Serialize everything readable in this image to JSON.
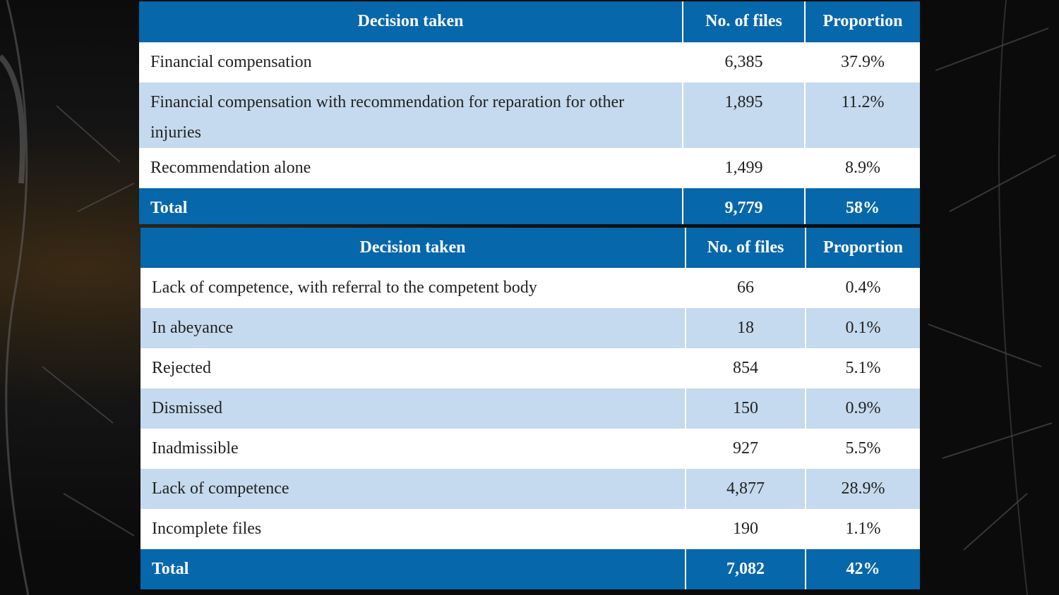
{
  "tables": [
    {
      "header": [
        "Decision taken",
        "No. of files",
        "Proportion"
      ],
      "rows": [
        [
          "Financial compensation",
          "6,385",
          "37.9%"
        ],
        [
          "Financial compensation with recommendation for reparation for other injuries",
          "1,895",
          "11.2%"
        ],
        [
          "Recommendation alone",
          "1,499",
          "8.9%"
        ]
      ],
      "total": [
        "Total",
        "9,779",
        "58%"
      ]
    },
    {
      "header": [
        "Decision taken",
        "No. of files",
        "Proportion"
      ],
      "rows": [
        [
          "Lack of competence, with referral to the competent body",
          "66",
          "0.4%"
        ],
        [
          "In abeyance",
          "18",
          "0.1%"
        ],
        [
          "Rejected",
          "854",
          "5.1%"
        ],
        [
          "Dismissed",
          "150",
          "0.9%"
        ],
        [
          "Inadmissible",
          "927",
          "5.5%"
        ],
        [
          "Lack of competence",
          "4,877",
          "28.9%"
        ],
        [
          "Incomplete files",
          "190",
          "1.1%"
        ]
      ],
      "total": [
        "Total",
        "7,082",
        "42%"
      ]
    }
  ]
}
